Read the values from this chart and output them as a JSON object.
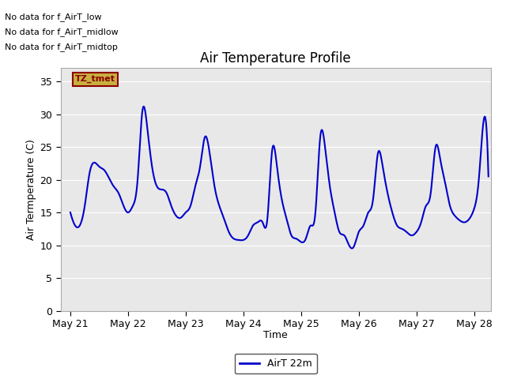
{
  "title": "Air Temperature Profile",
  "xlabel": "Time",
  "ylabel": "Air Termperature (C)",
  "ylim": [
    0,
    37
  ],
  "yticks": [
    0,
    5,
    10,
    15,
    20,
    25,
    30,
    35
  ],
  "line_color": "#0000cc",
  "line_width": 1.5,
  "legend_label": "AirT 22m",
  "bg_color": "#ffffff",
  "plot_bg_inner": "#e8e8e8",
  "plot_bg_outer": "#d0d0d0",
  "annotations": [
    "No data for f_AirT_low",
    "No data for f_AirT_midlow",
    "No data for f_AirT_midtop"
  ],
  "tz_label": "TZ_tmet",
  "x_tick_labels": [
    "May 21",
    "May 22",
    "May 23",
    "May 24",
    "May 25",
    "May 26",
    "May 27",
    "May 28"
  ],
  "x_tick_positions": [
    0,
    24,
    48,
    72,
    96,
    120,
    144,
    168
  ],
  "xlim": [
    -4,
    175
  ],
  "control_hours": [
    0,
    2,
    6,
    8,
    12,
    14,
    18,
    20,
    24,
    26,
    28,
    30,
    32,
    34,
    36,
    38,
    40,
    42,
    44,
    46,
    48,
    50,
    52,
    54,
    56,
    58,
    60,
    62,
    64,
    66,
    68,
    70,
    72,
    74,
    76,
    78,
    80,
    82,
    84,
    86,
    88,
    90,
    92,
    94,
    96,
    98,
    100,
    102,
    104,
    106,
    108,
    110,
    112,
    114,
    116,
    118,
    120,
    122,
    124,
    126,
    128,
    130,
    132,
    134,
    136,
    138,
    140,
    142,
    144,
    146,
    148,
    150,
    152,
    154,
    156,
    158,
    160,
    162,
    164,
    166,
    168,
    170,
    172,
    174
  ],
  "control_temps": [
    15,
    13,
    16,
    21,
    22,
    21.5,
    19,
    18,
    15,
    16,
    20,
    30.5,
    28,
    22,
    19,
    18.5,
    18,
    16,
    14.5,
    14.2,
    15,
    16,
    19,
    22,
    26.5,
    24,
    19,
    16,
    14,
    12,
    11,
    10.8,
    10.8,
    11.5,
    13,
    13.5,
    13.5,
    14,
    24.5,
    22,
    17,
    14,
    11.5,
    11,
    10.5,
    11,
    13,
    15,
    26.5,
    25,
    19,
    15,
    12,
    11.5,
    10,
    9.8,
    12,
    13,
    15,
    17,
    24,
    22,
    18,
    15,
    13,
    12.5,
    12,
    11.5,
    12,
    13.5,
    16,
    18,
    25,
    23,
    19.5,
    16,
    14.5,
    13.8,
    13.5,
    14,
    15.5,
    20,
    29,
    20.5
  ]
}
